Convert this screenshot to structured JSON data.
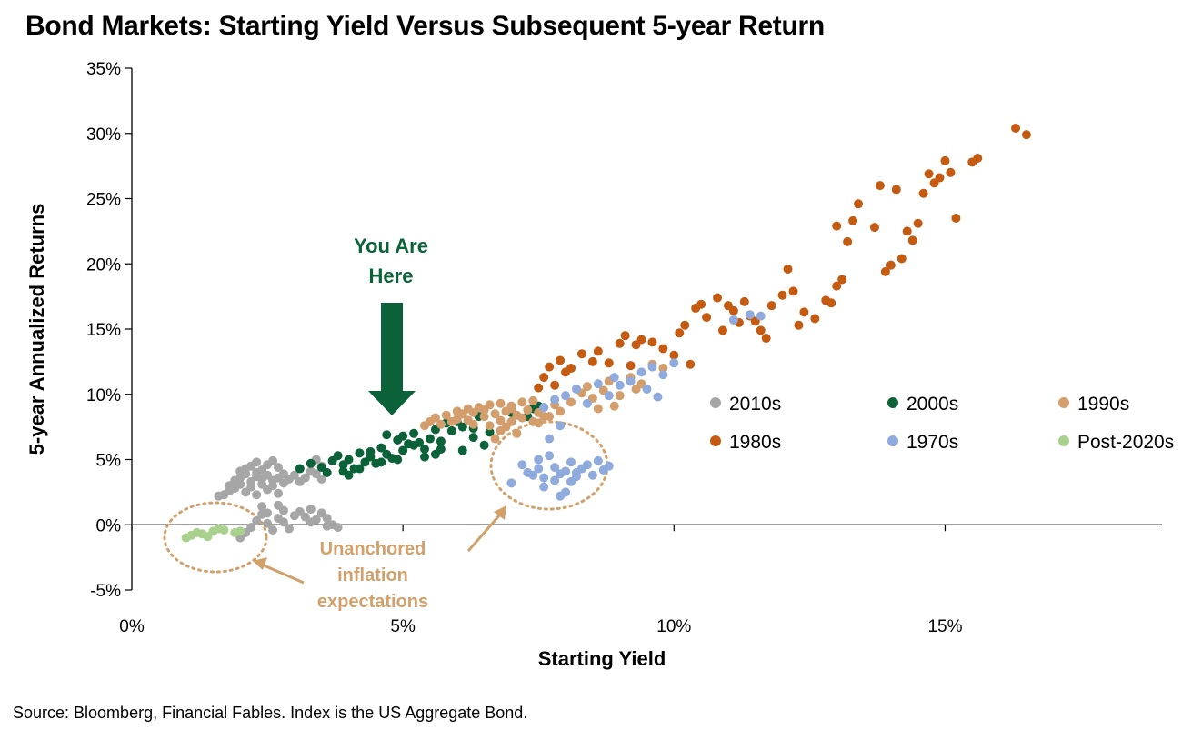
{
  "title": "Bond Markets: Starting Yield Versus Subsequent 5-year Return",
  "source": "Source: Bloomberg, Financial Fables. Index is the US Aggregate Bond.",
  "annotations": {
    "you_are_here": [
      "You Are",
      "Here"
    ],
    "unanchored": [
      "Unanchored",
      "inflation",
      "expectations"
    ]
  },
  "chart_data": {
    "type": "scatter",
    "xlabel": "Starting Yield",
    "ylabel": "5-year Annualized Returns",
    "xlim": [
      0,
      19
    ],
    "ylim": [
      -5,
      35
    ],
    "xticks": [
      0,
      5,
      10,
      15
    ],
    "xtick_labels": [
      "0%",
      "5%",
      "10%",
      "15%"
    ],
    "yticks": [
      -5,
      0,
      5,
      10,
      15,
      20,
      25,
      30,
      35
    ],
    "ytick_labels": [
      "-5%",
      "0%",
      "5%",
      "10%",
      "15%",
      "20%",
      "25%",
      "30%",
      "35%"
    ],
    "legend_position": "right",
    "series": [
      {
        "name": "2010s",
        "color": "#a6a6a6",
        "points": [
          [
            1.6,
            2.2
          ],
          [
            1.7,
            2.3
          ],
          [
            1.8,
            2.6
          ],
          [
            1.8,
            3.0
          ],
          [
            1.9,
            2.8
          ],
          [
            1.9,
            3.4
          ],
          [
            2.0,
            3.1
          ],
          [
            2.0,
            3.6
          ],
          [
            2.0,
            4.1
          ],
          [
            2.1,
            2.5
          ],
          [
            2.1,
            3.9
          ],
          [
            2.1,
            4.3
          ],
          [
            2.2,
            2.9
          ],
          [
            2.2,
            3.3
          ],
          [
            2.2,
            4.5
          ],
          [
            2.3,
            2.3
          ],
          [
            2.3,
            3.7
          ],
          [
            2.3,
            4.0
          ],
          [
            2.3,
            4.8
          ],
          [
            2.4,
            3.1
          ],
          [
            2.4,
            3.5
          ],
          [
            2.4,
            4.2
          ],
          [
            2.5,
            2.7
          ],
          [
            2.5,
            3.8
          ],
          [
            2.5,
            4.6
          ],
          [
            2.6,
            3.0
          ],
          [
            2.6,
            3.4
          ],
          [
            2.6,
            4.9
          ],
          [
            2.7,
            2.4
          ],
          [
            2.7,
            3.6
          ],
          [
            2.7,
            4.4
          ],
          [
            2.8,
            3.2
          ],
          [
            2.8,
            3.9
          ],
          [
            2.9,
            3.5
          ],
          [
            3.0,
            3.8
          ],
          [
            3.1,
            3.3
          ],
          [
            3.2,
            3.6
          ],
          [
            3.3,
            4.1
          ],
          [
            3.4,
            3.9
          ],
          [
            3.5,
            3.5
          ],
          [
            3.5,
            4.5
          ],
          [
            3.4,
            5.0
          ],
          [
            2.0,
            -1.0
          ],
          [
            2.1,
            -0.6
          ],
          [
            2.2,
            -0.2
          ],
          [
            2.3,
            0.3
          ],
          [
            2.4,
            0.8
          ],
          [
            2.4,
            1.4
          ],
          [
            2.5,
            0.9
          ],
          [
            2.5,
            0.1
          ],
          [
            2.6,
            -0.4
          ],
          [
            2.7,
            0.5
          ],
          [
            2.7,
            1.5
          ],
          [
            2.8,
            1.1
          ],
          [
            2.8,
            0.2
          ],
          [
            2.9,
            -0.3
          ],
          [
            3.0,
            0.7
          ],
          [
            3.1,
            1.0
          ],
          [
            3.2,
            0.6
          ],
          [
            3.3,
            0.2
          ],
          [
            3.3,
            1.2
          ],
          [
            3.4,
            0.4
          ],
          [
            3.5,
            0.9
          ],
          [
            3.6,
            -0.1
          ],
          [
            3.6,
            0.5
          ],
          [
            3.7,
            0.0
          ],
          [
            3.8,
            -0.2
          ]
        ]
      },
      {
        "name": "2000s",
        "color": "#0b6238",
        "points": [
          [
            3.1,
            4.3
          ],
          [
            3.3,
            4.7
          ],
          [
            3.5,
            4.4
          ],
          [
            3.6,
            4.0
          ],
          [
            3.7,
            4.9
          ],
          [
            3.8,
            5.3
          ],
          [
            3.9,
            4.6
          ],
          [
            4.0,
            5.0
          ],
          [
            4.1,
            4.3
          ],
          [
            4.2,
            5.5
          ],
          [
            4.3,
            4.8
          ],
          [
            4.4,
            5.2
          ],
          [
            4.5,
            4.7
          ],
          [
            4.6,
            5.9
          ],
          [
            4.7,
            5.4
          ],
          [
            4.7,
            6.9
          ],
          [
            4.8,
            5.1
          ],
          [
            4.9,
            6.5
          ],
          [
            5.0,
            5.7
          ],
          [
            5.0,
            6.8
          ],
          [
            5.1,
            6.2
          ],
          [
            5.2,
            7.0
          ],
          [
            5.3,
            6.3
          ],
          [
            5.4,
            5.8
          ],
          [
            5.5,
            6.6
          ],
          [
            5.6,
            7.3
          ],
          [
            5.7,
            6.4
          ],
          [
            5.8,
            7.8
          ],
          [
            5.9,
            7.2
          ],
          [
            6.0,
            7.9
          ],
          [
            6.1,
            7.5
          ],
          [
            6.2,
            8.0
          ],
          [
            6.3,
            7.4
          ],
          [
            6.4,
            8.3
          ],
          [
            6.5,
            6.1
          ],
          [
            6.1,
            5.7
          ],
          [
            5.6,
            5.4
          ],
          [
            5.4,
            5.2
          ],
          [
            4.9,
            5.0
          ],
          [
            4.6,
            4.8
          ],
          [
            4.2,
            4.3
          ],
          [
            4.0,
            3.8
          ],
          [
            3.9,
            4.1
          ],
          [
            4.4,
            5.6
          ],
          [
            5.2,
            6.1
          ],
          [
            5.7,
            5.8
          ],
          [
            6.3,
            6.7
          ],
          [
            6.6,
            7.1
          ],
          [
            7.3,
            8.3
          ],
          [
            7.4,
            8.9
          ],
          [
            7.0,
            8.6
          ],
          [
            7.5,
            9.1
          ]
        ]
      },
      {
        "name": "1990s",
        "color": "#d49d6c",
        "points": [
          [
            5.4,
            7.6
          ],
          [
            5.5,
            7.9
          ],
          [
            5.6,
            8.2
          ],
          [
            5.7,
            7.7
          ],
          [
            5.8,
            8.4
          ],
          [
            5.9,
            7.9
          ],
          [
            6.0,
            8.7
          ],
          [
            6.0,
            8.1
          ],
          [
            6.1,
            8.5
          ],
          [
            6.2,
            8.9
          ],
          [
            6.2,
            8.0
          ],
          [
            6.3,
            8.6
          ],
          [
            6.4,
            9.0
          ],
          [
            6.5,
            8.3
          ],
          [
            6.5,
            8.8
          ],
          [
            6.6,
            7.6
          ],
          [
            6.6,
            9.2
          ],
          [
            6.7,
            8.5
          ],
          [
            6.8,
            8.0
          ],
          [
            6.8,
            9.3
          ],
          [
            6.9,
            8.7
          ],
          [
            7.0,
            7.9
          ],
          [
            7.0,
            9.1
          ],
          [
            7.1,
            8.4
          ],
          [
            7.2,
            9.4
          ],
          [
            7.2,
            8.2
          ],
          [
            7.3,
            8.8
          ],
          [
            7.4,
            9.5
          ],
          [
            7.5,
            8.6
          ],
          [
            7.5,
            7.8
          ],
          [
            7.6,
            9.0
          ],
          [
            7.7,
            8.3
          ],
          [
            7.8,
            9.2
          ],
          [
            7.0,
            8.9
          ],
          [
            6.8,
            7.2
          ],
          [
            6.7,
            6.6
          ],
          [
            6.9,
            7.5
          ],
          [
            7.1,
            7.0
          ],
          [
            7.4,
            7.9
          ],
          [
            8.1,
            9.4
          ],
          [
            8.3,
            10.1
          ],
          [
            8.5,
            9.7
          ],
          [
            8.7,
            10.3
          ],
          [
            8.8,
            11.0
          ],
          [
            9.0,
            9.9
          ],
          [
            9.2,
            11.3
          ],
          [
            9.4,
            10.8
          ],
          [
            9.6,
            12.3
          ],
          [
            9.8,
            12.0
          ],
          [
            8.6,
            8.9
          ],
          [
            8.4,
            10.6
          ],
          [
            7.9,
            8.7
          ],
          [
            8.9,
            9.1
          ],
          [
            9.3,
            10.4
          ],
          [
            7.6,
            8.3
          ],
          [
            6.3,
            7.7
          ]
        ]
      },
      {
        "name": "1980s",
        "color": "#c55a11",
        "points": [
          [
            7.5,
            10.5
          ],
          [
            7.6,
            11.3
          ],
          [
            7.7,
            12.1
          ],
          [
            7.9,
            12.6
          ],
          [
            8.0,
            11.7
          ],
          [
            8.3,
            13.1
          ],
          [
            8.5,
            12.5
          ],
          [
            8.6,
            13.3
          ],
          [
            8.8,
            12.4
          ],
          [
            9.0,
            13.9
          ],
          [
            9.1,
            14.5
          ],
          [
            9.3,
            13.8
          ],
          [
            9.4,
            14.2
          ],
          [
            9.6,
            14.0
          ],
          [
            9.8,
            13.5
          ],
          [
            10.0,
            13.0
          ],
          [
            10.1,
            14.7
          ],
          [
            10.2,
            15.3
          ],
          [
            10.4,
            16.6
          ],
          [
            10.5,
            16.9
          ],
          [
            10.8,
            17.4
          ],
          [
            11.0,
            16.8
          ],
          [
            11.1,
            16.4
          ],
          [
            11.3,
            17.1
          ],
          [
            11.4,
            16.0
          ],
          [
            11.5,
            15.6
          ],
          [
            11.6,
            14.9
          ],
          [
            11.8,
            16.8
          ],
          [
            12.0,
            17.6
          ],
          [
            12.2,
            17.9
          ],
          [
            12.4,
            16.3
          ],
          [
            12.6,
            15.8
          ],
          [
            12.8,
            17.2
          ],
          [
            13.0,
            18.3
          ],
          [
            13.0,
            22.9
          ],
          [
            13.2,
            21.7
          ],
          [
            13.3,
            23.3
          ],
          [
            13.4,
            24.6
          ],
          [
            13.7,
            22.8
          ],
          [
            13.8,
            26.0
          ],
          [
            13.9,
            19.4
          ],
          [
            14.0,
            19.9
          ],
          [
            14.1,
            25.7
          ],
          [
            14.2,
            20.4
          ],
          [
            14.3,
            22.5
          ],
          [
            14.4,
            21.8
          ],
          [
            14.5,
            23.1
          ],
          [
            14.6,
            25.4
          ],
          [
            14.7,
            26.9
          ],
          [
            14.8,
            26.2
          ],
          [
            14.9,
            26.6
          ],
          [
            15.0,
            27.9
          ],
          [
            15.1,
            27.0
          ],
          [
            15.2,
            23.5
          ],
          [
            15.5,
            27.8
          ],
          [
            15.6,
            28.1
          ],
          [
            16.3,
            30.4
          ],
          [
            16.5,
            29.9
          ],
          [
            10.3,
            12.3
          ],
          [
            10.9,
            14.9
          ],
          [
            11.7,
            14.3
          ],
          [
            12.3,
            15.3
          ],
          [
            9.2,
            12.2
          ],
          [
            8.1,
            12.0
          ],
          [
            7.8,
            10.7
          ],
          [
            12.9,
            17.0
          ],
          [
            11.2,
            15.5
          ],
          [
            10.6,
            15.9
          ],
          [
            13.1,
            18.8
          ],
          [
            12.1,
            19.6
          ]
        ]
      },
      {
        "name": "1970s",
        "color": "#8faadc",
        "points": [
          [
            7.0,
            3.2
          ],
          [
            7.2,
            4.6
          ],
          [
            7.3,
            4.0
          ],
          [
            7.4,
            3.8
          ],
          [
            7.5,
            5.0
          ],
          [
            7.5,
            4.3
          ],
          [
            7.6,
            3.6
          ],
          [
            7.6,
            2.9
          ],
          [
            7.7,
            5.3
          ],
          [
            7.7,
            6.6
          ],
          [
            7.8,
            4.4
          ],
          [
            7.8,
            3.4
          ],
          [
            7.9,
            2.2
          ],
          [
            7.9,
            7.6
          ],
          [
            8.0,
            2.5
          ],
          [
            8.0,
            4.1
          ],
          [
            8.1,
            4.8
          ],
          [
            8.1,
            3.3
          ],
          [
            8.2,
            4.0
          ],
          [
            8.3,
            4.3
          ],
          [
            8.4,
            4.6
          ],
          [
            8.5,
            3.8
          ],
          [
            8.6,
            4.9
          ],
          [
            8.7,
            4.2
          ],
          [
            8.8,
            4.5
          ],
          [
            8.2,
            3.7
          ],
          [
            7.9,
            3.9
          ],
          [
            7.6,
            9.0
          ],
          [
            7.8,
            9.6
          ],
          [
            8.0,
            9.9
          ],
          [
            8.2,
            10.4
          ],
          [
            8.4,
            9.3
          ],
          [
            8.6,
            10.8
          ],
          [
            8.8,
            9.9
          ],
          [
            9.0,
            10.7
          ],
          [
            9.2,
            11.0
          ],
          [
            9.4,
            11.7
          ],
          [
            9.6,
            12.1
          ],
          [
            9.8,
            11.5
          ],
          [
            10.0,
            12.4
          ],
          [
            11.1,
            15.7
          ],
          [
            11.4,
            16.1
          ],
          [
            11.6,
            16.0
          ],
          [
            8.9,
            11.3
          ],
          [
            9.5,
            10.4
          ],
          [
            9.7,
            9.8
          ]
        ]
      },
      {
        "name": "Post-2020s",
        "color": "#a9d18e",
        "points": [
          [
            1.0,
            -1.0
          ],
          [
            1.1,
            -0.8
          ],
          [
            1.2,
            -0.6
          ],
          [
            1.3,
            -0.7
          ],
          [
            1.4,
            -0.9
          ],
          [
            1.5,
            -0.5
          ],
          [
            1.6,
            -0.3
          ],
          [
            1.7,
            -0.4
          ],
          [
            1.9,
            -0.6
          ],
          [
            2.0,
            -0.5
          ]
        ]
      }
    ]
  }
}
